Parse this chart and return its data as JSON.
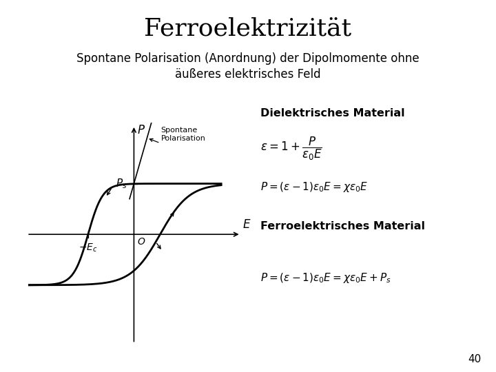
{
  "title": "Ferroelektrizität",
  "subtitle_line1": "Spontane Polarisation (Anordnung) der Dipolmomente ohne",
  "subtitle_line2": "äußeres elektrisches Feld",
  "label_sp_line1": "Spontane",
  "label_sp_line2": "Polarisation",
  "label_diel": "Dielektrisches Material",
  "label_ferro": "Ferroelektrisches Material",
  "eq1": "$\\varepsilon = 1 + \\dfrac{P}{\\varepsilon_0 E}$",
  "eq2": "$P = (\\varepsilon - 1)\\varepsilon_0 E = \\chi\\varepsilon_0 E$",
  "eq3": "$P = (\\varepsilon - 1)\\varepsilon_0 E = \\chi\\varepsilon_0 E + P_s$",
  "page_number": "40",
  "bg_color": "#ffffff",
  "curve_color": "#000000",
  "text_color": "#000000",
  "title_fontsize": 26,
  "subtitle_fontsize": 12,
  "eq_fontsize": 13,
  "label_fontsize": 12
}
